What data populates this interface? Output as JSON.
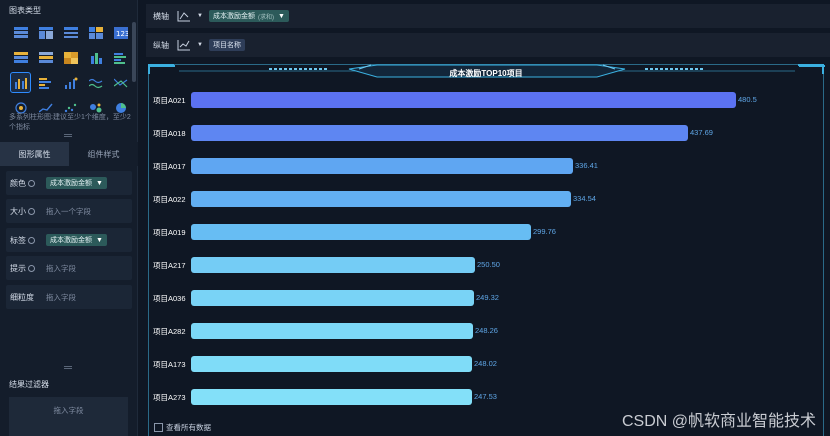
{
  "left_panel": {
    "chart_type_title": "图表类型",
    "chart_type_hint": "多系列柱形图:建议至少1个维度，至少2个指标",
    "tabs": [
      {
        "label": "图形属性",
        "active": true
      },
      {
        "label": "组件样式",
        "active": false
      }
    ],
    "props": [
      {
        "label": "颜色",
        "field": "成本激励金额",
        "placeholder": ""
      },
      {
        "label": "大小",
        "field": "",
        "placeholder": "拖入一个字段"
      },
      {
        "label": "标签",
        "field": "成本激励金额",
        "placeholder": ""
      },
      {
        "label": "提示",
        "field": "",
        "placeholder": "拖入字段"
      },
      {
        "label": "细粒度",
        "field": "",
        "placeholder": "拖入字段"
      }
    ],
    "filter_title": "结果过滤器",
    "filter_placeholder": "拖入字段"
  },
  "axes": {
    "x_label": "横轴",
    "x_field": "成本激励金额",
    "x_field_agg": "(求和)",
    "y_label": "纵轴",
    "y_field": "项目名称"
  },
  "chart_data": {
    "type": "bar",
    "orientation": "horizontal",
    "title": "成本激励TOP10项目",
    "categories": [
      "项目A021",
      "项目A018",
      "项目A017",
      "项目A022",
      "项目A019",
      "项目A217",
      "项目A036",
      "项目A282",
      "项目A173",
      "项目A273"
    ],
    "values": [
      480.5,
      437.69,
      336.41,
      334.54,
      299.76,
      250.5,
      249.32,
      248.26,
      248.02,
      247.53
    ],
    "value_labels": [
      "480.5",
      "437.69",
      "336.41",
      "334.54",
      "299.76",
      "250.50",
      "249.32",
      "248.26",
      "248.02",
      "247.53"
    ],
    "colors": [
      "#5b72f2",
      "#5e86f2",
      "#5fa6f2",
      "#62aff2",
      "#67bdf3",
      "#74ccf5",
      "#79d3f6",
      "#7cd8f7",
      "#7fdcf8",
      "#83e0f9"
    ],
    "xlim": [
      0,
      520
    ],
    "xlabel": "",
    "ylabel": "",
    "grid": false
  },
  "show_all_label": "查看所有数据",
  "watermark": "CSDN @帆软商业智能技术"
}
